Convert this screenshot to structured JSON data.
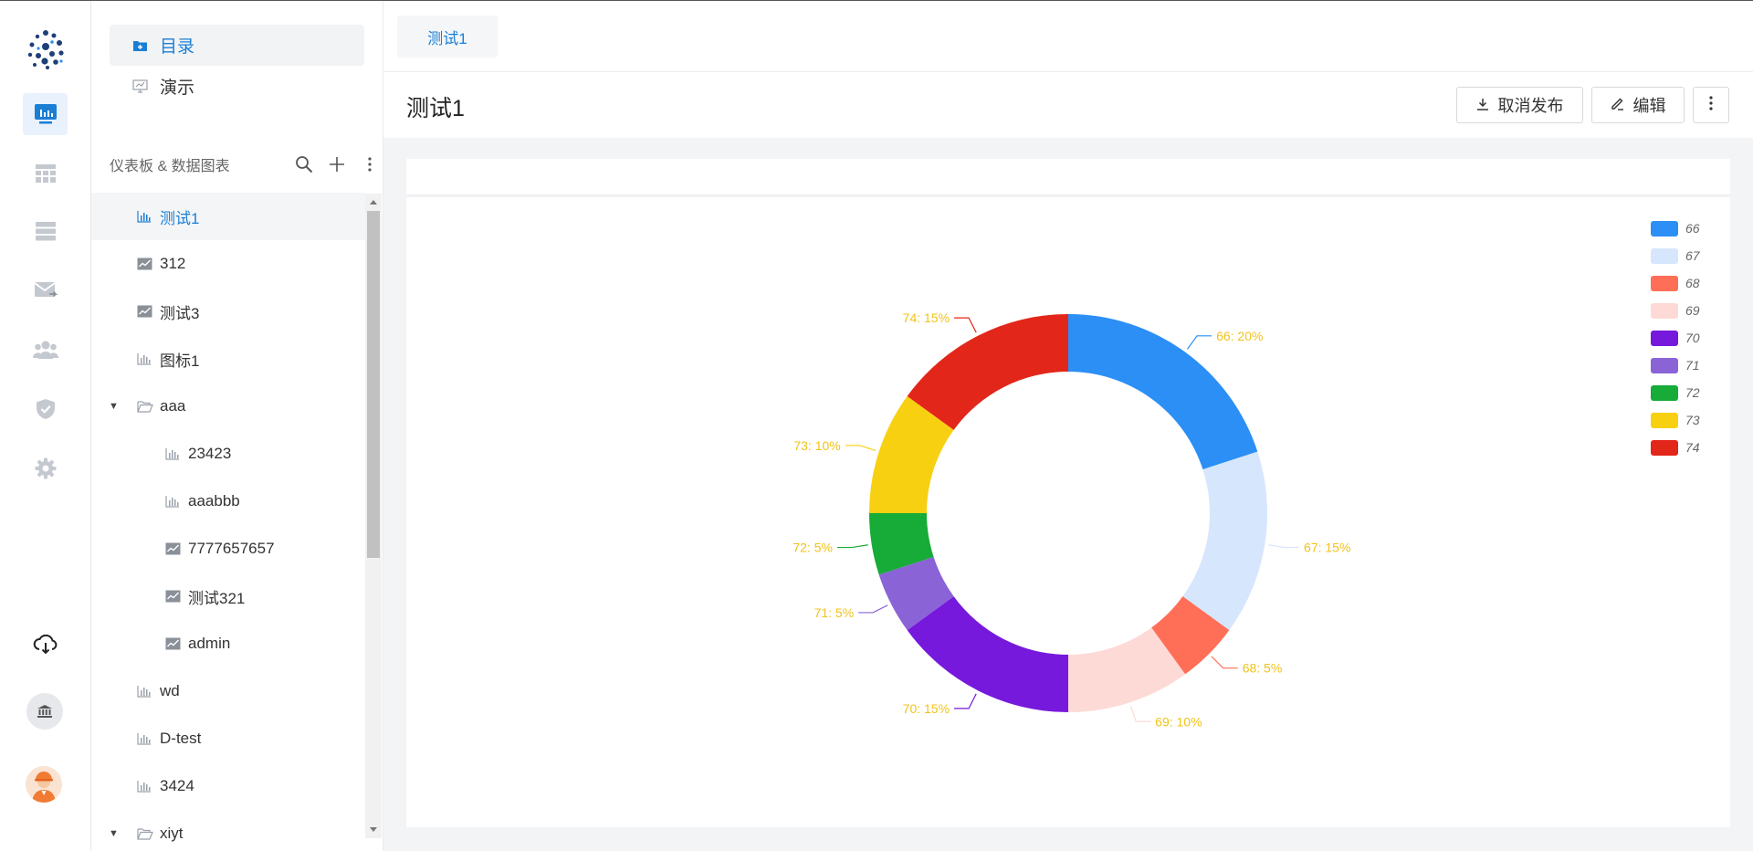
{
  "nav": {
    "catalog": "目录",
    "demo": "演示"
  },
  "tree": {
    "header": "仪表板 & 数据图表",
    "items": [
      {
        "label": "测试1",
        "icon": "bar-chart-icon",
        "indent": 0,
        "active": true
      },
      {
        "label": "312",
        "icon": "line-chart-icon",
        "indent": 0
      },
      {
        "label": "测试3",
        "icon": "line-chart-icon",
        "indent": 0
      },
      {
        "label": "图标1",
        "icon": "bar-chart-icon",
        "indent": 0
      },
      {
        "label": "aaa",
        "icon": "folder-open-icon",
        "indent": 0,
        "folder": true
      },
      {
        "label": "23423",
        "icon": "bar-chart-icon",
        "indent": 1
      },
      {
        "label": "aaabbb",
        "icon": "bar-chart-icon",
        "indent": 1
      },
      {
        "label": "7777657657",
        "icon": "line-chart-icon",
        "indent": 1
      },
      {
        "label": "测试321",
        "icon": "line-chart-icon",
        "indent": 1
      },
      {
        "label": "admin",
        "icon": "line-chart-icon",
        "indent": 1
      },
      {
        "label": "wd",
        "icon": "bar-chart-icon",
        "indent": 0
      },
      {
        "label": "D-test",
        "icon": "bar-chart-icon",
        "indent": 0
      },
      {
        "label": "3424",
        "icon": "bar-chart-icon",
        "indent": 0
      },
      {
        "label": "xiyt",
        "icon": "folder-open-icon",
        "indent": 0,
        "folder": true
      }
    ]
  },
  "tabs": [
    {
      "label": "测试1"
    }
  ],
  "page": {
    "title": "测试1",
    "unpublish_label": "取消发布",
    "edit_label": "编辑"
  },
  "colors": {
    "accent": "#1a7fd4",
    "label": "#f2c21a"
  },
  "chart_data": {
    "type": "pie",
    "donut": true,
    "legend_position": "top-right",
    "categories": [
      "66",
      "67",
      "68",
      "69",
      "70",
      "71",
      "72",
      "73",
      "74"
    ],
    "values": [
      20,
      15,
      5,
      10,
      15,
      5,
      5,
      10,
      15
    ],
    "data_labels": [
      "66: 20%",
      "67: 15%",
      "68: 5%",
      "69: 10%",
      "70: 15%",
      "71: 5%",
      "72: 5%",
      "73: 10%",
      "74: 15%"
    ],
    "colors": [
      "#2b8ff5",
      "#d6e6fd",
      "#ff6e57",
      "#fddad6",
      "#7619dc",
      "#8a63d6",
      "#17ab37",
      "#f8d012",
      "#e3261a"
    ]
  }
}
